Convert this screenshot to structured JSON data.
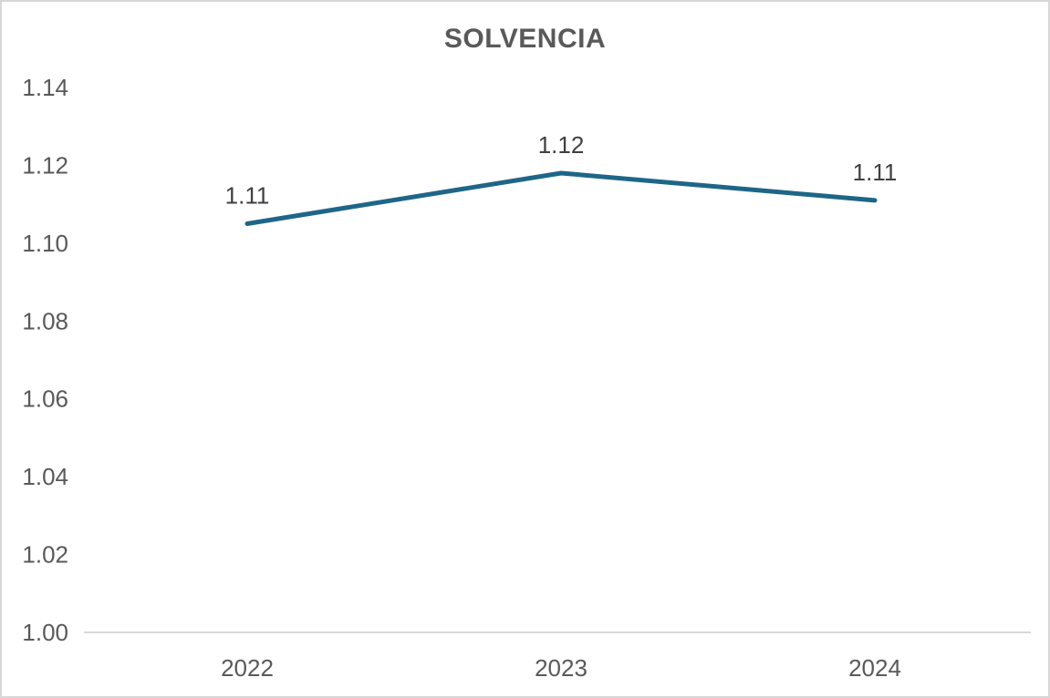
{
  "window": {
    "background": "#ffffff",
    "frame_border_color": "#d7d7d7"
  },
  "chart_data": {
    "type": "line",
    "title": "SOLVENCIA",
    "categories": [
      "2022",
      "2023",
      "2024"
    ],
    "series": [
      {
        "name": "SOLVENCIA",
        "values": [
          1.105,
          1.118,
          1.111
        ],
        "point_labels": [
          "1.11",
          "1.12",
          "1.11"
        ],
        "color": "#1E6688"
      }
    ],
    "xlabel": "",
    "ylabel": "",
    "ylim": [
      1.0,
      1.14
    ],
    "y_tick_labels": [
      "1.14",
      "1.12",
      "1.10",
      "1.08",
      "1.06",
      "1.04",
      "1.02",
      "1.00"
    ],
    "y_tick_values": [
      1.14,
      1.12,
      1.1,
      1.08,
      1.06,
      1.04,
      1.02,
      1.0
    ],
    "grid": false,
    "legend": false,
    "axis_line_color": "#d9d9d9",
    "tick_text_color": "#595959",
    "data_label_color": "#404040"
  }
}
